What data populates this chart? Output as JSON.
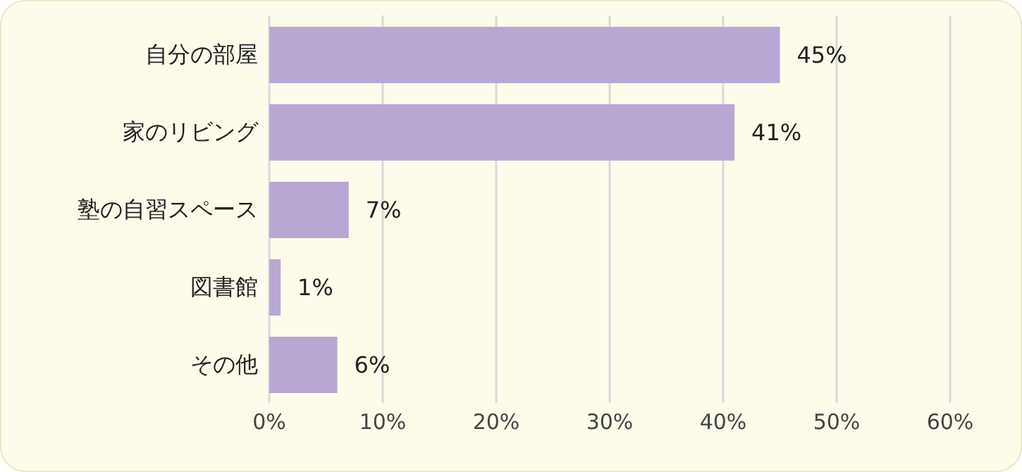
{
  "chart_data": {
    "type": "bar",
    "orientation": "horizontal",
    "categories": [
      "自分の部屋",
      "家のリビング",
      "塾の自習スペース",
      "図書館",
      "その他"
    ],
    "values": [
      45,
      41,
      7,
      1,
      6
    ],
    "value_labels": [
      "45%",
      "41%",
      "7%",
      "1%",
      "6%"
    ],
    "color": "#b9a7d3",
    "xlim": [
      0,
      60
    ],
    "xticks": [
      {
        "value": 0,
        "label": "0%"
      },
      {
        "value": 10,
        "label": "10%"
      },
      {
        "value": 20,
        "label": "20%"
      },
      {
        "value": 30,
        "label": "30%"
      },
      {
        "value": 40,
        "label": "40%"
      },
      {
        "value": 50,
        "label": "50%"
      },
      {
        "value": 60,
        "label": "60%"
      }
    ],
    "grid": "x"
  }
}
